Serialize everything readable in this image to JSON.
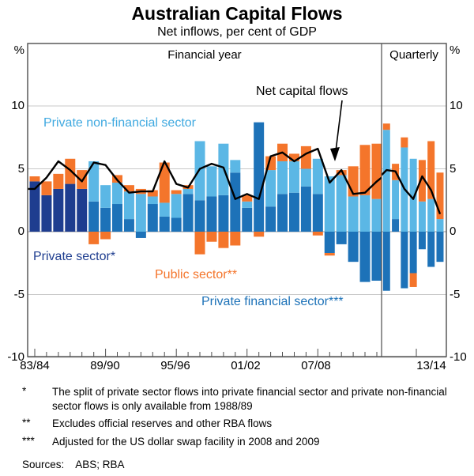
{
  "title": "Australian Capital Flows",
  "subtitle": "Net inflows, per cent of GDP",
  "panels": {
    "left": "Financial year",
    "right": "Quarterly"
  },
  "y_axis": {
    "unit": "%",
    "ticks": [
      10,
      5,
      0,
      -5,
      -10
    ],
    "min": -10,
    "max": 15
  },
  "x_axis": {
    "labels": [
      {
        "text": "83/84",
        "x": 44
      },
      {
        "text": "89/90",
        "x": 133
      },
      {
        "text": "95/96",
        "x": 222
      },
      {
        "text": "01/02",
        "x": 311
      },
      {
        "text": "07/08",
        "x": 400
      },
      {
        "text": "13/14",
        "x": 546
      }
    ]
  },
  "annotations": {
    "non_financial_label": "Private non-financial sector",
    "net_flows_label": "Net capital flows",
    "private_sector_label": "Private sector*",
    "public_sector_label": "Public sector**",
    "private_financial_label": "Private financial sector***"
  },
  "footnotes": [
    {
      "marker": "*",
      "text": "The split of private sector flows into private financial sector and private non-financial sector flows is only available from 1988/89"
    },
    {
      "marker": "**",
      "text": "Excludes official reserves and other RBA flows"
    },
    {
      "marker": "***",
      "text": "Adjusted for the US dollar swap facility in 2008 and 2009"
    }
  ],
  "sources_label": "Sources:",
  "sources_text": "ABS; RBA",
  "colors": {
    "private_sector": "#1e3d8f",
    "private_financial": "#1d72b8",
    "private_non_financial": "#5bb7e5",
    "public": "#f4752b",
    "net_line": "#000000",
    "gridline": "#c9c9c9",
    "zero_line": "#999999",
    "frame": "#4d4d4d"
  },
  "chart_data": {
    "type": "bar",
    "subtype": "stacked-bars-with-line",
    "units": "per cent of GDP",
    "annual_panel": {
      "label": "Financial year",
      "years": [
        "83/84",
        "84/85",
        "85/86",
        "86/87",
        "87/88",
        "88/89",
        "89/90",
        "90/91",
        "91/92",
        "92/93",
        "93/94",
        "94/95",
        "95/96",
        "96/97",
        "97/98",
        "98/99",
        "99/00",
        "00/01",
        "01/02",
        "02/03",
        "03/04",
        "04/05",
        "05/06",
        "06/07",
        "07/08",
        "08/09",
        "09/10",
        "10/11",
        "11/12",
        "12/13"
      ],
      "series": [
        {
          "name": "Private sector",
          "color_key": "private_sector",
          "values": [
            4.0,
            2.9,
            3.4,
            3.8,
            3.4,
            null,
            null,
            null,
            null,
            null,
            null,
            null,
            null,
            null,
            null,
            null,
            null,
            null,
            null,
            null,
            null,
            null,
            null,
            null,
            null,
            null,
            null,
            null,
            null,
            null
          ]
        },
        {
          "name": "Private financial sector",
          "color_key": "private_financial",
          "values": [
            null,
            null,
            null,
            null,
            null,
            2.4,
            1.9,
            2.2,
            1.0,
            -0.5,
            2.2,
            1.2,
            1.1,
            3.0,
            2.5,
            2.8,
            2.9,
            4.7,
            1.9,
            8.7,
            2.0,
            3.0,
            3.1,
            3.6,
            3.0,
            -1.7,
            -1.0,
            -2.4,
            -4.0,
            -3.9
          ]
        },
        {
          "name": "Private non-financial sector",
          "color_key": "private_non_financial",
          "values": [
            null,
            null,
            null,
            null,
            null,
            3.2,
            1.8,
            1.7,
            2.2,
            3.0,
            0.6,
            1.1,
            1.9,
            0.4,
            4.7,
            2.4,
            4.1,
            1.0,
            0.5,
            0,
            2.9,
            2.6,
            2.5,
            1.4,
            2.8,
            4.4,
            4.5,
            2.8,
            2.9,
            2.6
          ]
        },
        {
          "name": "Public sector",
          "color_key": "public",
          "values": [
            0.4,
            1.1,
            1.2,
            2.0,
            1.5,
            -1.0,
            -0.6,
            0.6,
            0.5,
            0.4,
            0.5,
            3.2,
            0.3,
            0.3,
            -1.8,
            -0.8,
            -1.3,
            -1.1,
            0.5,
            -0.4,
            1.1,
            1.4,
            0.6,
            1.8,
            -0.3,
            -0.2,
            0.4,
            2.4,
            4.0,
            4.4
          ]
        }
      ],
      "net_capital_flows": [
        3.4,
        4.3,
        5.6,
        4.9,
        4.0,
        5.5,
        5.3,
        4.1,
        3.1,
        3.2,
        3.2,
        5.6,
        3.8,
        3.5,
        5.0,
        5.4,
        5.1,
        2.6,
        3.0,
        2.6,
        6.0,
        6.3,
        5.6,
        6.2,
        6.6,
        3.9,
        4.9,
        3.0,
        3.1,
        4.0
      ],
      "net_edge_values": {
        "left": 3.4,
        "right": 4.3
      }
    },
    "quarterly_panel": {
      "label": "Quarterly",
      "quarters": [
        "q1",
        "q2",
        "q3",
        "q4",
        "q5",
        "q6",
        "q7"
      ],
      "series": [
        {
          "name": "Private financial sector",
          "color_key": "private_financial",
          "values": [
            -4.7,
            1.0,
            -4.5,
            -3.3,
            -1.4,
            -2.8,
            -2.4
          ]
        },
        {
          "name": "Private non-financial sector",
          "color_key": "private_non_financial",
          "values": [
            8.1,
            3.1,
            6.7,
            5.8,
            2.4,
            2.6,
            1.0
          ]
        },
        {
          "name": "Public sector",
          "color_key": "public",
          "values": [
            0.5,
            1.3,
            0.8,
            -1.1,
            3.3,
            4.6,
            3.7
          ]
        }
      ],
      "net_capital_flows": [
        4.9,
        4.8,
        3.4,
        2.6,
        4.4,
        3.3,
        1.4
      ],
      "net_edge_values": {
        "left": 4.5
      }
    }
  }
}
